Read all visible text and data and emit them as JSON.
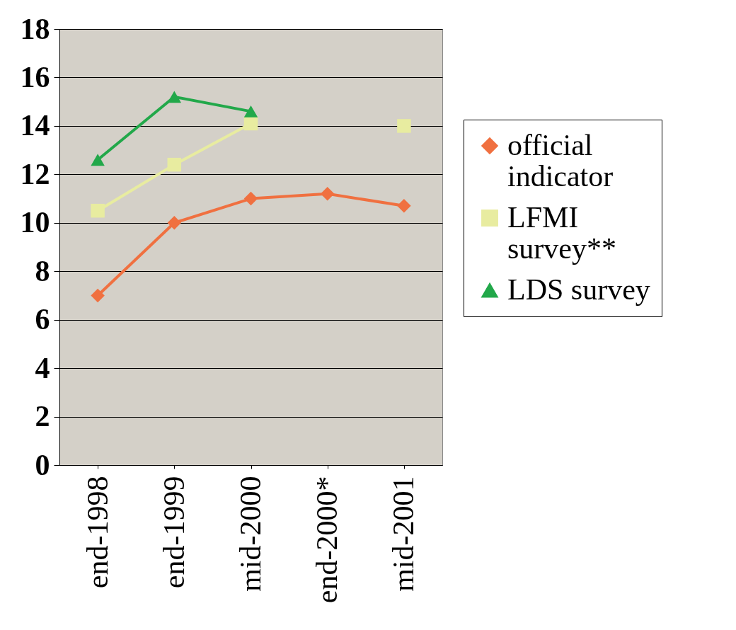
{
  "chart_data": {
    "type": "line",
    "categories": [
      "end-1998",
      "end-1999",
      "mid-2000",
      "end-2000*",
      "mid-2001"
    ],
    "series": [
      {
        "name": "official indicator",
        "color": "#f07040",
        "marker": "diamond",
        "values": [
          7,
          10,
          11,
          11.2,
          10.7
        ]
      },
      {
        "name": "LFMI survey**",
        "color": "#e8eca0",
        "marker": "square",
        "values": [
          10.5,
          12.4,
          14.1,
          null,
          14
        ]
      },
      {
        "name": "LDS survey",
        "color": "#22a84a",
        "marker": "triangle",
        "values": [
          12.6,
          15.2,
          14.6,
          null,
          null
        ]
      }
    ],
    "ylim": [
      0,
      18
    ],
    "yticks": [
      0,
      2,
      4,
      6,
      8,
      10,
      12,
      14,
      16,
      18
    ],
    "grid": "y",
    "legend": "right"
  }
}
